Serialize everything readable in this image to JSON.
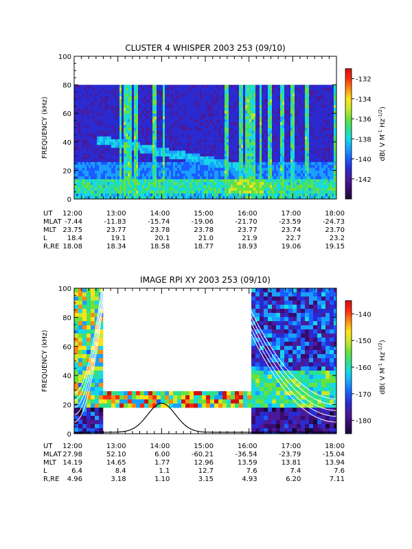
{
  "chart_data": [
    {
      "type": "heatmap",
      "title": "CLUSTER 4 WHISPER 2003 253 (09/10)",
      "ylabel": "FREQUENCY (kHz)",
      "ylim": [
        0,
        100
      ],
      "yticks": [
        "0",
        "20",
        "40",
        "60",
        "80",
        "100"
      ],
      "x_range_hours": [
        12,
        18
      ],
      "xticks": [
        "12:00",
        "13:00",
        "14:00",
        "15:00",
        "16:00",
        "17:00",
        "18:00"
      ],
      "data_frequency_range_khz": [
        0,
        80
      ],
      "colorbar": {
        "label": "dB( V M⁻¹ Hz⁻¹ᐟ²)",
        "label_main": "dB( V M",
        "label_exp1": "-1",
        "label_mid": " Hz",
        "label_exp2": "-1/2",
        "label_end": ")",
        "range": [
          -144,
          -131
        ],
        "ticks": [
          "-132",
          "-134",
          "-136",
          "-138",
          "-140",
          "-142"
        ]
      },
      "ephemeris": {
        "row_labels": [
          "UT",
          "MLAT",
          "MLT",
          "L",
          "R,RE"
        ],
        "rows": [
          [
            "12:00",
            "13:00",
            "14:00",
            "15:00",
            "16:00",
            "17:00",
            "18:00"
          ],
          [
            "-7.44",
            "-11.83",
            "-15.74",
            "-19.06",
            "-21.70",
            "-23.59",
            "-24.73"
          ],
          [
            "23.75",
            "23.77",
            "23.78",
            "23.78",
            "23.77",
            "23.74",
            "23.70"
          ],
          [
            "18.4",
            "19.1",
            "20.1",
            "21.0",
            "21.9",
            "22.7",
            "23.2"
          ],
          [
            "18.08",
            "18.34",
            "18.58",
            "18.77",
            "18.93",
            "19.06",
            "19.15"
          ]
        ]
      }
    },
    {
      "type": "heatmap",
      "title": "IMAGE RPI XY 2003 253 (09/10)",
      "ylabel": "FREQUENCY (kHz)",
      "ylim": [
        0,
        100
      ],
      "yticks": [
        "0",
        "20",
        "40",
        "60",
        "80",
        "100"
      ],
      "x_range_hours": [
        12,
        18
      ],
      "xticks": [
        "12:00",
        "13:00",
        "14:00",
        "15:00",
        "16:00",
        "17:00",
        "18:00"
      ],
      "data_gap_hours": [
        12.65,
        15.96
      ],
      "gap_band_khz": [
        18,
        32
      ],
      "colorbar": {
        "label_main": "dB( V M",
        "label_exp1": "-1",
        "label_mid": " Hz",
        "label_exp2": "-1/2",
        "label_end": ")",
        "range": [
          -185,
          -135
        ],
        "ticks": [
          "-140",
          "-150",
          "-160",
          "-170",
          "-180"
        ]
      },
      "ephemeris": {
        "row_labels": [
          "UT",
          "MLAT",
          "MLT",
          "L",
          "R,RE"
        ],
        "rows": [
          [
            "12:00",
            "13:00",
            "14:00",
            "15:00",
            "16:00",
            "17:00",
            "18:00"
          ],
          [
            "27.98",
            "52.10",
            "6.00",
            "-60.21",
            "-36.54",
            "-23.79",
            "-15.04"
          ],
          [
            "14.19",
            "14.65",
            "1.77",
            "12.96",
            "13.59",
            "13.81",
            "13.94"
          ],
          [
            "6.4",
            "8.4",
            "1.1",
            "12.7",
            "7.6",
            "7.4",
            "7.6"
          ],
          [
            "4.96",
            "3.18",
            "1.10",
            "3.15",
            "4.93",
            "6.20",
            "7.11"
          ]
        ]
      }
    }
  ],
  "colors": {
    "scale": [
      "#1a0a33",
      "#3a0a70",
      "#4a1a9a",
      "#2a2ad0",
      "#1a5cff",
      "#19a0ff",
      "#16d8e8",
      "#2ee08a",
      "#6ae23a",
      "#c8e82a",
      "#ffe21a",
      "#ff8a10",
      "#ff2a10",
      "#d01010"
    ],
    "text": "#000000"
  }
}
